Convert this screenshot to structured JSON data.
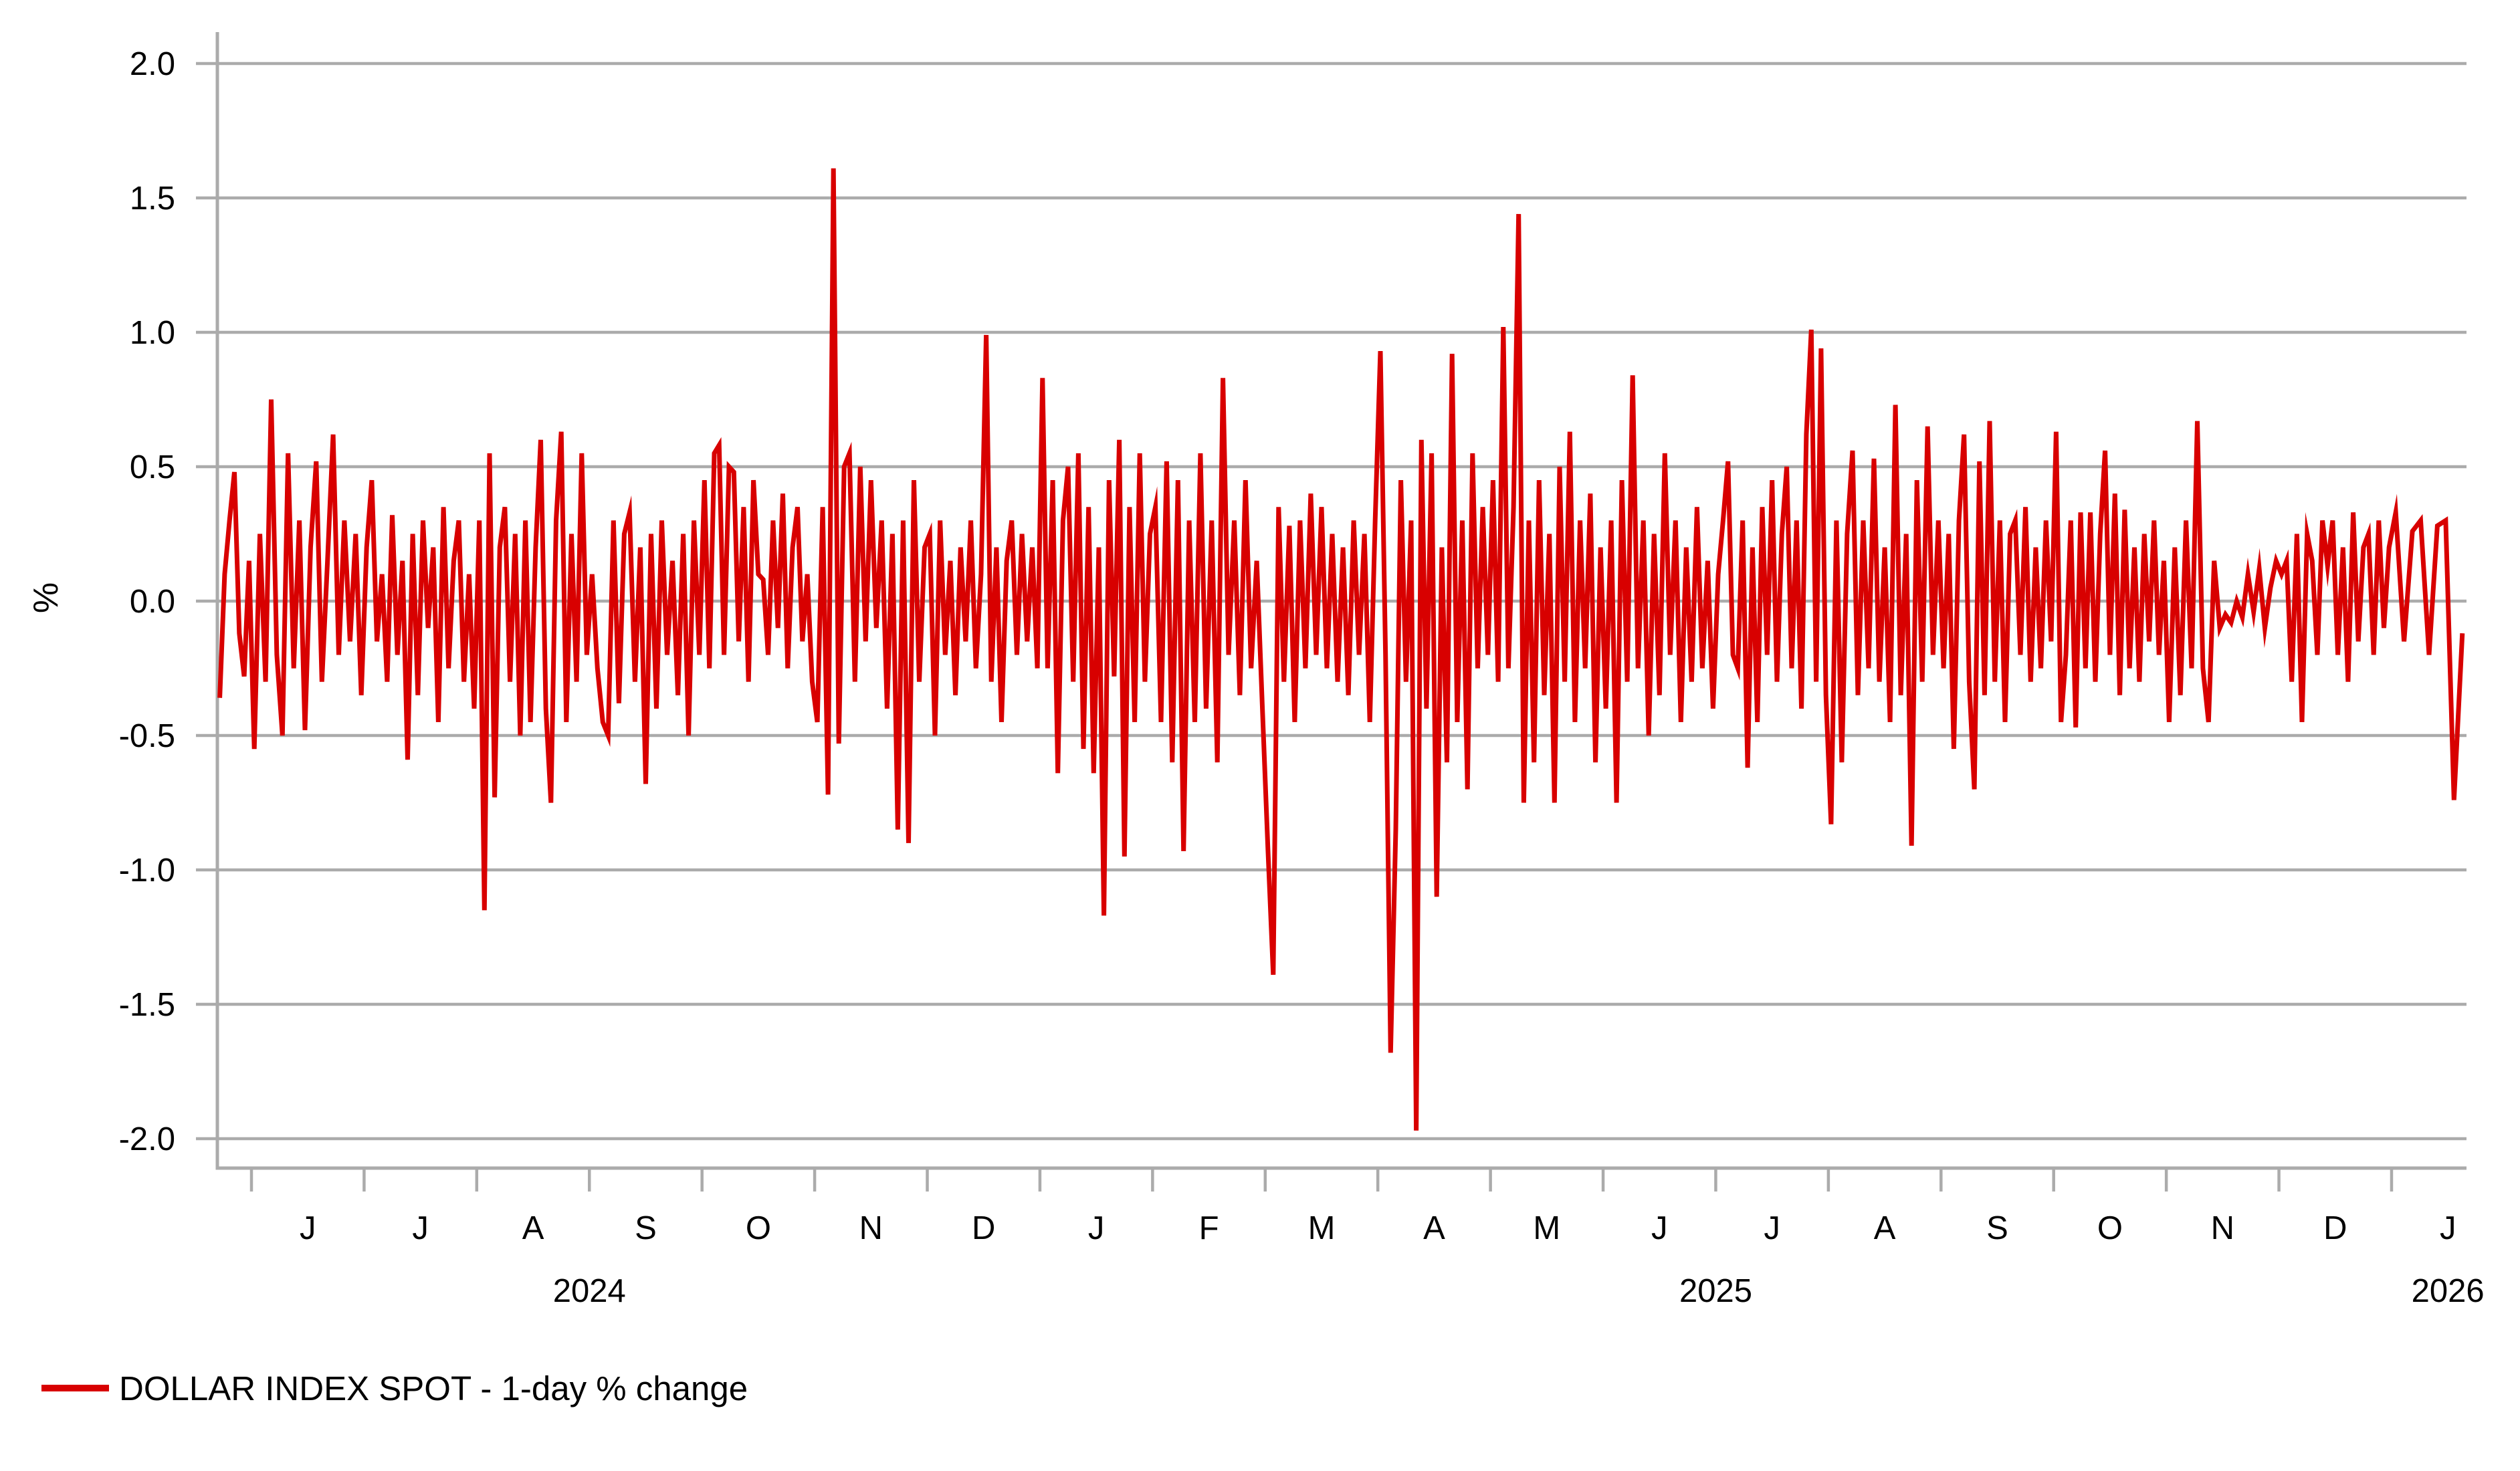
{
  "chart_data": {
    "type": "line",
    "title": "",
    "ylabel": "%",
    "xlabel": "",
    "ylim": [
      -2.0,
      2.0
    ],
    "grid": "horizontal",
    "legend_position": "bottom-left",
    "legend": "DOLLAR INDEX SPOT - 1-day % change",
    "series_name": "DOLLAR INDEX SPOT - 1-day % change",
    "y_tick_labels": [
      "2.0",
      "1.5",
      "1.0",
      "0.5",
      "0.0",
      "-0.5",
      "-1.0",
      "-1.5",
      "-2.0"
    ],
    "y_tick_values": [
      2.0,
      1.5,
      1.0,
      0.5,
      0.0,
      -0.5,
      -1.0,
      -1.5,
      -2.0
    ],
    "x_month_letters": [
      "J",
      "J",
      "A",
      "S",
      "O",
      "N",
      "D",
      "J",
      "F",
      "M",
      "A",
      "M",
      "J",
      "J",
      "A",
      "S",
      "O",
      "N",
      "D",
      "J"
    ],
    "year_labels": [
      "2024",
      "2025",
      "2026"
    ],
    "colors": {
      "line": "#d80000",
      "grid": "#ababab",
      "axis": "#ababab",
      "text": "#000000",
      "background": "#ffffff"
    },
    "months": [
      {
        "year": 2024,
        "label": "",
        "values": [
          -0.36,
          0.1,
          0.3,
          0.48,
          -0.12,
          -0.28,
          0.15
        ]
      },
      {
        "year": 2024,
        "label": "J",
        "values": [
          -0.55,
          0.25,
          -0.3,
          0.75,
          -0.2,
          -0.5,
          0.55,
          -0.25,
          0.3,
          -0.48,
          0.2,
          0.52,
          -0.3,
          0.15,
          0.62,
          -0.2,
          0.3,
          -0.15,
          0.25,
          -0.35
        ]
      },
      {
        "year": 2024,
        "label": "J",
        "values": [
          0.2,
          0.45,
          -0.15,
          0.1,
          -0.3,
          0.32,
          -0.2,
          0.15,
          -0.59,
          0.25,
          -0.35,
          0.3,
          -0.1,
          0.2,
          -0.45,
          0.35,
          -0.25,
          0.15,
          0.3,
          -0.3,
          0.1,
          -0.4
        ]
      },
      {
        "year": 2024,
        "label": "A",
        "values": [
          0.3,
          -1.15,
          0.55,
          -0.73,
          0.2,
          0.35,
          -0.3,
          0.25,
          -0.5,
          0.3,
          -0.45,
          0.2,
          0.6,
          -0.4,
          -0.75,
          0.3,
          0.63,
          -0.45,
          0.25,
          -0.3,
          0.55,
          -0.2
        ]
      },
      {
        "year": 2024,
        "label": "S",
        "values": [
          0.1,
          -0.25,
          -0.45,
          -0.5,
          0.3,
          -0.38,
          0.25,
          0.33,
          -0.3,
          0.2,
          -0.68,
          0.25,
          -0.4,
          0.3,
          -0.2,
          0.15,
          -0.35,
          0.25,
          -0.5,
          0.3,
          -0.2
        ]
      },
      {
        "year": 2024,
        "label": "O",
        "values": [
          0.45,
          -0.25,
          0.55,
          0.58,
          -0.2,
          0.5,
          0.48,
          -0.15,
          0.35,
          -0.3,
          0.45,
          0.1,
          0.08,
          -0.2,
          0.3,
          -0.1,
          0.4,
          -0.25,
          0.2,
          0.35,
          -0.15,
          0.1,
          -0.3
        ]
      },
      {
        "year": 2024,
        "label": "N",
        "values": [
          -0.45,
          0.35,
          -0.72,
          1.61,
          -0.53,
          0.5,
          0.55,
          -0.3,
          0.5,
          -0.15,
          0.45,
          -0.1,
          0.3,
          -0.4,
          0.25,
          -0.85,
          0.3,
          -0.9,
          0.45,
          -0.3,
          0.2
        ]
      },
      {
        "year": 2024,
        "label": "D",
        "values": [
          0.25,
          -0.5,
          0.3,
          -0.2,
          0.15,
          -0.35,
          0.2,
          -0.15,
          0.3,
          -0.25,
          0.1,
          0.99,
          -0.3,
          0.2,
          -0.45,
          0.15,
          0.3,
          -0.2,
          0.25,
          -0.15,
          0.2,
          -0.25
        ]
      },
      {
        "year": 2025,
        "label": "J",
        "values": [
          0.83,
          -0.25,
          0.45,
          -0.64,
          0.3,
          0.5,
          -0.3,
          0.55,
          -0.55,
          0.35,
          -0.64,
          0.2,
          -1.17,
          0.45,
          -0.28,
          0.6,
          -0.95,
          0.35,
          -0.45,
          0.55,
          -0.3,
          0.25
        ]
      },
      {
        "year": 2025,
        "label": "F",
        "values": [
          0.35,
          -0.45,
          0.52,
          -0.6,
          0.45,
          -0.93,
          0.3,
          -0.45,
          0.55,
          -0.4,
          0.3,
          -0.6,
          0.83,
          -0.2,
          0.3,
          -0.35,
          0.45,
          -0.25,
          0.15,
          -0.4
        ]
      },
      {
        "year": 2025,
        "label": "M",
        "values": [
          -0.92,
          -1.39,
          0.35,
          -0.3,
          0.28,
          -0.45,
          0.3,
          -0.25,
          0.4,
          -0.2,
          0.35,
          -0.25,
          0.25,
          -0.3,
          0.2,
          -0.35,
          0.3,
          -0.2,
          0.25,
          -0.45,
          0.3
        ]
      },
      {
        "year": 2025,
        "label": "A",
        "values": [
          0.93,
          -0.2,
          -1.68,
          -0.85,
          0.45,
          -0.3,
          0.3,
          -1.97,
          0.6,
          -0.4,
          0.55,
          -1.1,
          0.2,
          -0.6,
          0.92,
          -0.45,
          0.3,
          -0.7,
          0.55,
          -0.25,
          0.35,
          -0.2
        ]
      },
      {
        "year": 2025,
        "label": "M",
        "values": [
          0.45,
          -0.3,
          1.02,
          -0.25,
          0.35,
          1.44,
          -0.75,
          0.3,
          -0.6,
          0.45,
          -0.35,
          0.25,
          -0.75,
          0.5,
          -0.3,
          0.63,
          -0.45,
          0.3,
          -0.25,
          0.4,
          -0.6,
          0.2
        ]
      },
      {
        "year": 2025,
        "label": "J",
        "values": [
          -0.4,
          0.3,
          -0.75,
          0.45,
          -0.3,
          0.84,
          -0.25,
          0.3,
          -0.5,
          0.25,
          -0.35,
          0.55,
          -0.2,
          0.3,
          -0.45,
          0.2,
          -0.3,
          0.35,
          -0.25,
          0.15,
          -0.4
        ]
      },
      {
        "year": 2025,
        "label": "J",
        "values": [
          0.1,
          0.3,
          0.52,
          -0.2,
          -0.25,
          0.3,
          -0.62,
          0.2,
          -0.45,
          0.35,
          -0.2,
          0.45,
          -0.3,
          0.25,
          0.5,
          -0.25,
          0.3,
          -0.4,
          0.62,
          1.01,
          -0.3,
          0.94,
          -0.35
        ]
      },
      {
        "year": 2025,
        "label": "A",
        "values": [
          -0.83,
          0.3,
          -0.6,
          0.25,
          0.56,
          -0.35,
          0.3,
          -0.25,
          0.53,
          -0.3,
          0.2,
          -0.45,
          0.73,
          -0.35,
          0.25,
          -0.91,
          0.45,
          -0.3,
          0.65,
          -0.2,
          0.3
        ]
      },
      {
        "year": 2025,
        "label": "S",
        "values": [
          -0.25,
          0.25,
          -0.55,
          0.3,
          0.62,
          -0.3,
          -0.7,
          0.52,
          -0.35,
          0.67,
          -0.3,
          0.3,
          -0.45,
          0.25,
          0.3,
          -0.2,
          0.35,
          -0.3,
          0.2,
          -0.25,
          0.3,
          -0.15
        ]
      },
      {
        "year": 2025,
        "label": "O",
        "values": [
          0.63,
          -0.45,
          -0.2,
          0.3,
          -0.47,
          0.33,
          -0.25,
          0.33,
          -0.3,
          0.25,
          0.56,
          -0.2,
          0.4,
          -0.35,
          0.34,
          -0.25,
          0.2,
          -0.3,
          0.25,
          -0.15,
          0.3,
          -0.2,
          0.15
        ]
      },
      {
        "year": 2025,
        "label": "N",
        "values": [
          -0.45,
          0.2,
          -0.35,
          0.3,
          -0.25,
          0.67,
          -0.25,
          -0.45,
          0.15,
          -0.1,
          -0.05,
          -0.08,
          0.0,
          -0.06,
          0.1,
          -0.04,
          0.12,
          -0.1,
          0.05,
          0.15
        ]
      },
      {
        "year": 2025,
        "label": "D",
        "values": [
          0.1,
          0.15,
          -0.3,
          0.25,
          -0.45,
          0.25,
          0.15,
          -0.2,
          0.3,
          0.13,
          0.3,
          -0.2,
          0.2,
          -0.3,
          0.33,
          -0.15,
          0.2,
          0.25,
          -0.2,
          0.3,
          -0.1,
          0.2
        ]
      },
      {
        "year": 2026,
        "label": "J",
        "values": [
          0.33,
          -0.15,
          0.26,
          0.3,
          -0.2,
          0.28,
          0.3,
          -0.74,
          -0.12
        ]
      }
    ],
    "annotations": {
      "max_value": 1.61,
      "max_value_month": "Nov 2024",
      "min_value": -1.97,
      "min_value_month": "Apr 2025"
    }
  }
}
